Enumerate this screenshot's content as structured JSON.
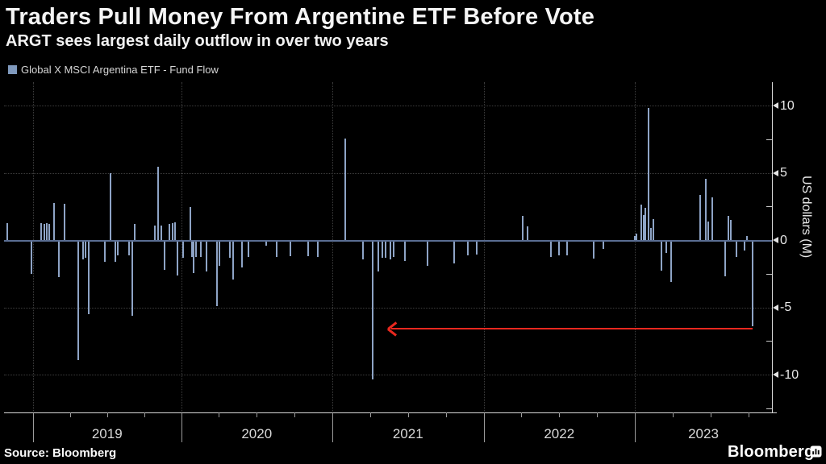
{
  "header": {
    "title": "Traders Pull Money From Argentine ETF Before Vote",
    "subtitle": "ARGT sees largest daily outflow in over two years"
  },
  "legend": {
    "swatch_color": "#7f99bd",
    "label": "Global X MSCI Argentina ETF - Fund Flow"
  },
  "footer": {
    "source": "Source: Bloomberg",
    "brand": "Bloomberg"
  },
  "chart_data": {
    "type": "bar",
    "title": "Traders Pull Money From Argentine ETF Before Vote",
    "subtitle": "ARGT sees largest daily outflow in over two years",
    "series_name": "Global X MSCI Argentina ETF - Fund Flow",
    "ylabel": "US dollars (M)",
    "y_ticks": [
      10,
      5,
      0,
      -5,
      -10
    ],
    "y_minor_ticks": [
      7.5,
      2.5,
      -2.5,
      -7.5,
      -12.5
    ],
    "ylim": [
      -12.8,
      11.8
    ],
    "x_year_labels": [
      "2019",
      "2020",
      "2021",
      "2022",
      "2023"
    ],
    "x_range_decimal_years": [
      2018.8,
      2023.88
    ],
    "grid": "dotted",
    "legend_position": "top-left",
    "bar_color": "#8ea4c6",
    "zero_line_color": "#5a6d92",
    "annotation_arrow": {
      "from_decimal_year": 2023.779,
      "to_decimal_year": 2021.368,
      "at_value": -6.55,
      "color": "#e8281f"
    },
    "points_format": "[decimal_year, daily_fund_flow_USD_millions]",
    "points": [
      [
        2018.826,
        1.3
      ],
      [
        2018.989,
        -2.5
      ],
      [
        2019.054,
        1.3
      ],
      [
        2019.076,
        1.2
      ],
      [
        2019.093,
        1.3
      ],
      [
        2019.109,
        1.2
      ],
      [
        2019.142,
        2.8
      ],
      [
        2019.174,
        -2.7
      ],
      [
        2019.213,
        2.7
      ],
      [
        2019.305,
        -8.9
      ],
      [
        2019.338,
        -1.4
      ],
      [
        2019.354,
        -1.3
      ],
      [
        2019.376,
        -5.5
      ],
      [
        2019.485,
        -1.6
      ],
      [
        2019.523,
        5.0
      ],
      [
        2019.556,
        -1.6
      ],
      [
        2019.572,
        -1.1
      ],
      [
        2019.649,
        -1.1
      ],
      [
        2019.67,
        -5.6
      ],
      [
        2019.687,
        1.2
      ],
      [
        2019.823,
        1.1
      ],
      [
        2019.845,
        5.5
      ],
      [
        2019.867,
        1.1
      ],
      [
        2019.888,
        -2.2
      ],
      [
        2019.921,
        1.2
      ],
      [
        2019.943,
        1.3
      ],
      [
        2019.959,
        1.35
      ],
      [
        2019.976,
        -2.6
      ],
      [
        2020.013,
        -1.3
      ],
      [
        2020.061,
        2.5
      ],
      [
        2020.072,
        -1.25
      ],
      [
        2020.083,
        -2.4
      ],
      [
        2020.099,
        -1.2
      ],
      [
        2020.131,
        -1.2
      ],
      [
        2020.168,
        -2.3
      ],
      [
        2020.237,
        -4.9
      ],
      [
        2020.253,
        -1.9
      ],
      [
        2020.323,
        -1.3
      ],
      [
        2020.344,
        -2.9
      ],
      [
        2020.403,
        -2.0
      ],
      [
        2020.445,
        -1.2
      ],
      [
        2020.563,
        -0.4
      ],
      [
        2020.632,
        -1.2
      ],
      [
        2020.723,
        -1.15
      ],
      [
        2020.84,
        -1.15
      ],
      [
        2020.904,
        -1.25
      ],
      [
        2021.085,
        7.6
      ],
      [
        2021.203,
        -1.4
      ],
      [
        2021.267,
        -10.3
      ],
      [
        2021.304,
        -2.3
      ],
      [
        2021.331,
        -1.3
      ],
      [
        2021.352,
        -1.3
      ],
      [
        2021.384,
        -1.4
      ],
      [
        2021.405,
        -1.2
      ],
      [
        2021.48,
        -1.5
      ],
      [
        2021.629,
        -1.9
      ],
      [
        2021.805,
        -1.7
      ],
      [
        2021.896,
        -1.1
      ],
      [
        2021.955,
        -1.05
      ],
      [
        2022.259,
        1.8
      ],
      [
        2022.291,
        1.05
      ],
      [
        2022.445,
        -1.25
      ],
      [
        2022.499,
        -1.1
      ],
      [
        2022.552,
        -1.1
      ],
      [
        2022.728,
        -1.35
      ],
      [
        2022.792,
        -0.6
      ],
      [
        2023.0,
        0.35
      ],
      [
        2023.01,
        0.5
      ],
      [
        2023.043,
        2.65
      ],
      [
        2023.059,
        1.9
      ],
      [
        2023.069,
        2.4
      ],
      [
        2023.091,
        9.85
      ],
      [
        2023.107,
        0.9
      ],
      [
        2023.123,
        1.6
      ],
      [
        2023.176,
        -2.25
      ],
      [
        2023.208,
        -0.9
      ],
      [
        2023.24,
        -3.1
      ],
      [
        2023.432,
        3.4
      ],
      [
        2023.469,
        4.6
      ],
      [
        2023.485,
        1.4
      ],
      [
        2023.512,
        3.2
      ],
      [
        2023.597,
        -2.65
      ],
      [
        2023.619,
        1.8
      ],
      [
        2023.635,
        1.5
      ],
      [
        2023.672,
        -1.2
      ],
      [
        2023.725,
        -0.75
      ],
      [
        2023.741,
        0.3
      ],
      [
        2023.779,
        -6.4
      ]
    ]
  }
}
